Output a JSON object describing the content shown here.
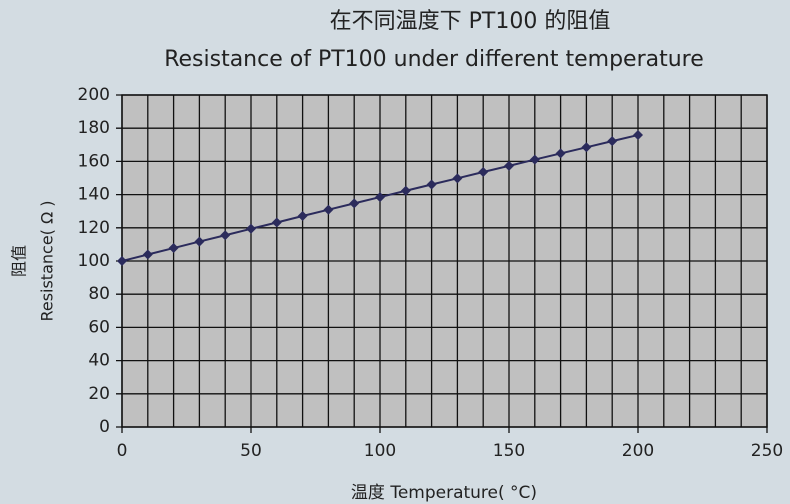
{
  "chart_data": {
    "type": "line",
    "title": "在不同温度下 PT100 的阻值",
    "subtitle": "Resistance of PT100 under different temperature",
    "y_label": [
      "阻值",
      "Resistance( Ω )"
    ],
    "x_label": "温度 Temperature( °C)",
    "x": [
      0,
      10,
      20,
      30,
      40,
      50,
      60,
      70,
      80,
      90,
      100,
      110,
      120,
      130,
      140,
      150,
      160,
      170,
      180,
      190,
      200
    ],
    "series": [
      {
        "name": "PT100",
        "color": "#2b2b5c",
        "values": [
          100,
          103.9,
          107.8,
          111.7,
          115.5,
          119.4,
          123.2,
          127.1,
          130.9,
          134.7,
          138.5,
          142.3,
          146.1,
          149.8,
          153.6,
          157.3,
          161.1,
          164.8,
          168.5,
          172.2,
          175.9
        ]
      }
    ],
    "xlim": [
      0,
      250
    ],
    "xticks": [
      0,
      50,
      100,
      150,
      200,
      250
    ],
    "xgrid": [
      0,
      10,
      20,
      30,
      40,
      50,
      60,
      70,
      80,
      90,
      100,
      110,
      120,
      130,
      140,
      150,
      160,
      170,
      180,
      190,
      200,
      210,
      220,
      230,
      240,
      250
    ],
    "ylim": [
      0,
      200
    ],
    "yticks": [
      0,
      20,
      40,
      60,
      80,
      100,
      120,
      140,
      160,
      180,
      200
    ],
    "grid": true
  }
}
